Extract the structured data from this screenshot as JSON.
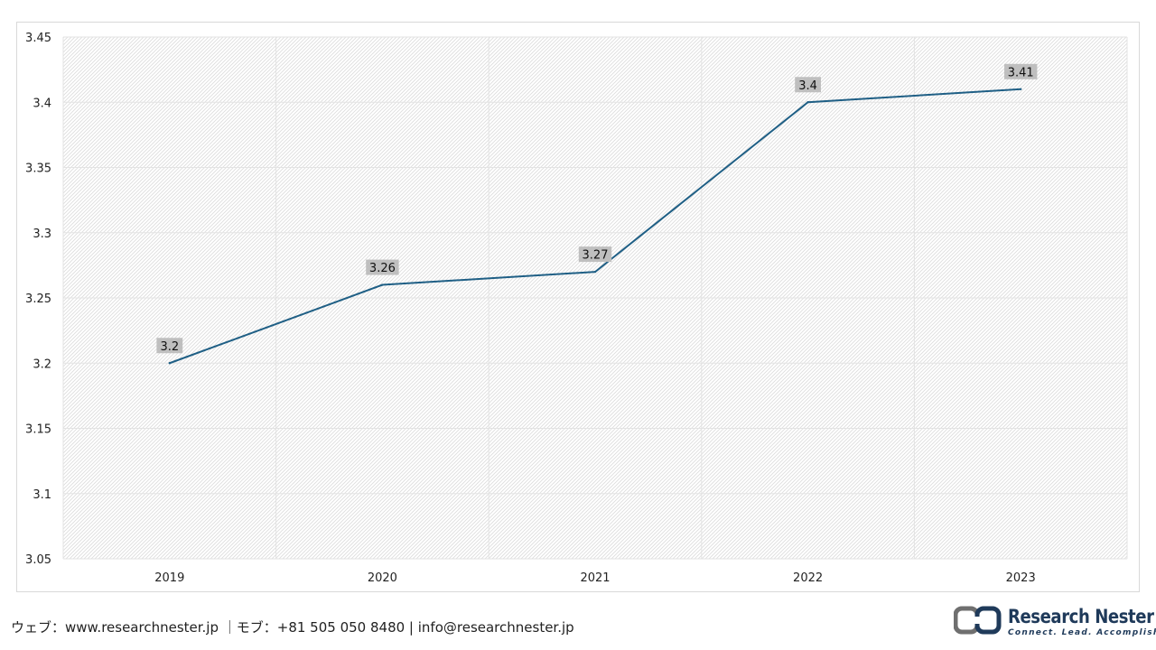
{
  "chart_data": {
    "type": "line",
    "categories": [
      "2019",
      "2020",
      "2021",
      "2022",
      "2023"
    ],
    "series": [
      {
        "values": [
          3.2,
          3.26,
          3.27,
          3.4,
          3.41
        ],
        "color": "#1f5f85"
      }
    ],
    "data_labels": [
      "3.2",
      "3.26",
      "3.27",
      "3.4",
      "3.41"
    ],
    "ylim": [
      3.05,
      3.45
    ],
    "y_ticks": [
      "3.05",
      "3.1",
      "3.15",
      "3.2",
      "3.25",
      "3.3",
      "3.35",
      "3.4",
      "3.45"
    ],
    "title": "",
    "xlabel": "",
    "ylabel": "",
    "grid": true,
    "legend": "none",
    "plot_background": "diagonal-hatch",
    "label_background_color": "#bfbfbf"
  },
  "footer": {
    "contact": "ウェブ：www.researchnester.jp ｜モブ：+81 505 050 8480 | info@researchnester.jp"
  },
  "logo": {
    "name": "Research Nester",
    "tagline": "Connect. Lead. Accomplish",
    "color": "#1f3a5a"
  }
}
